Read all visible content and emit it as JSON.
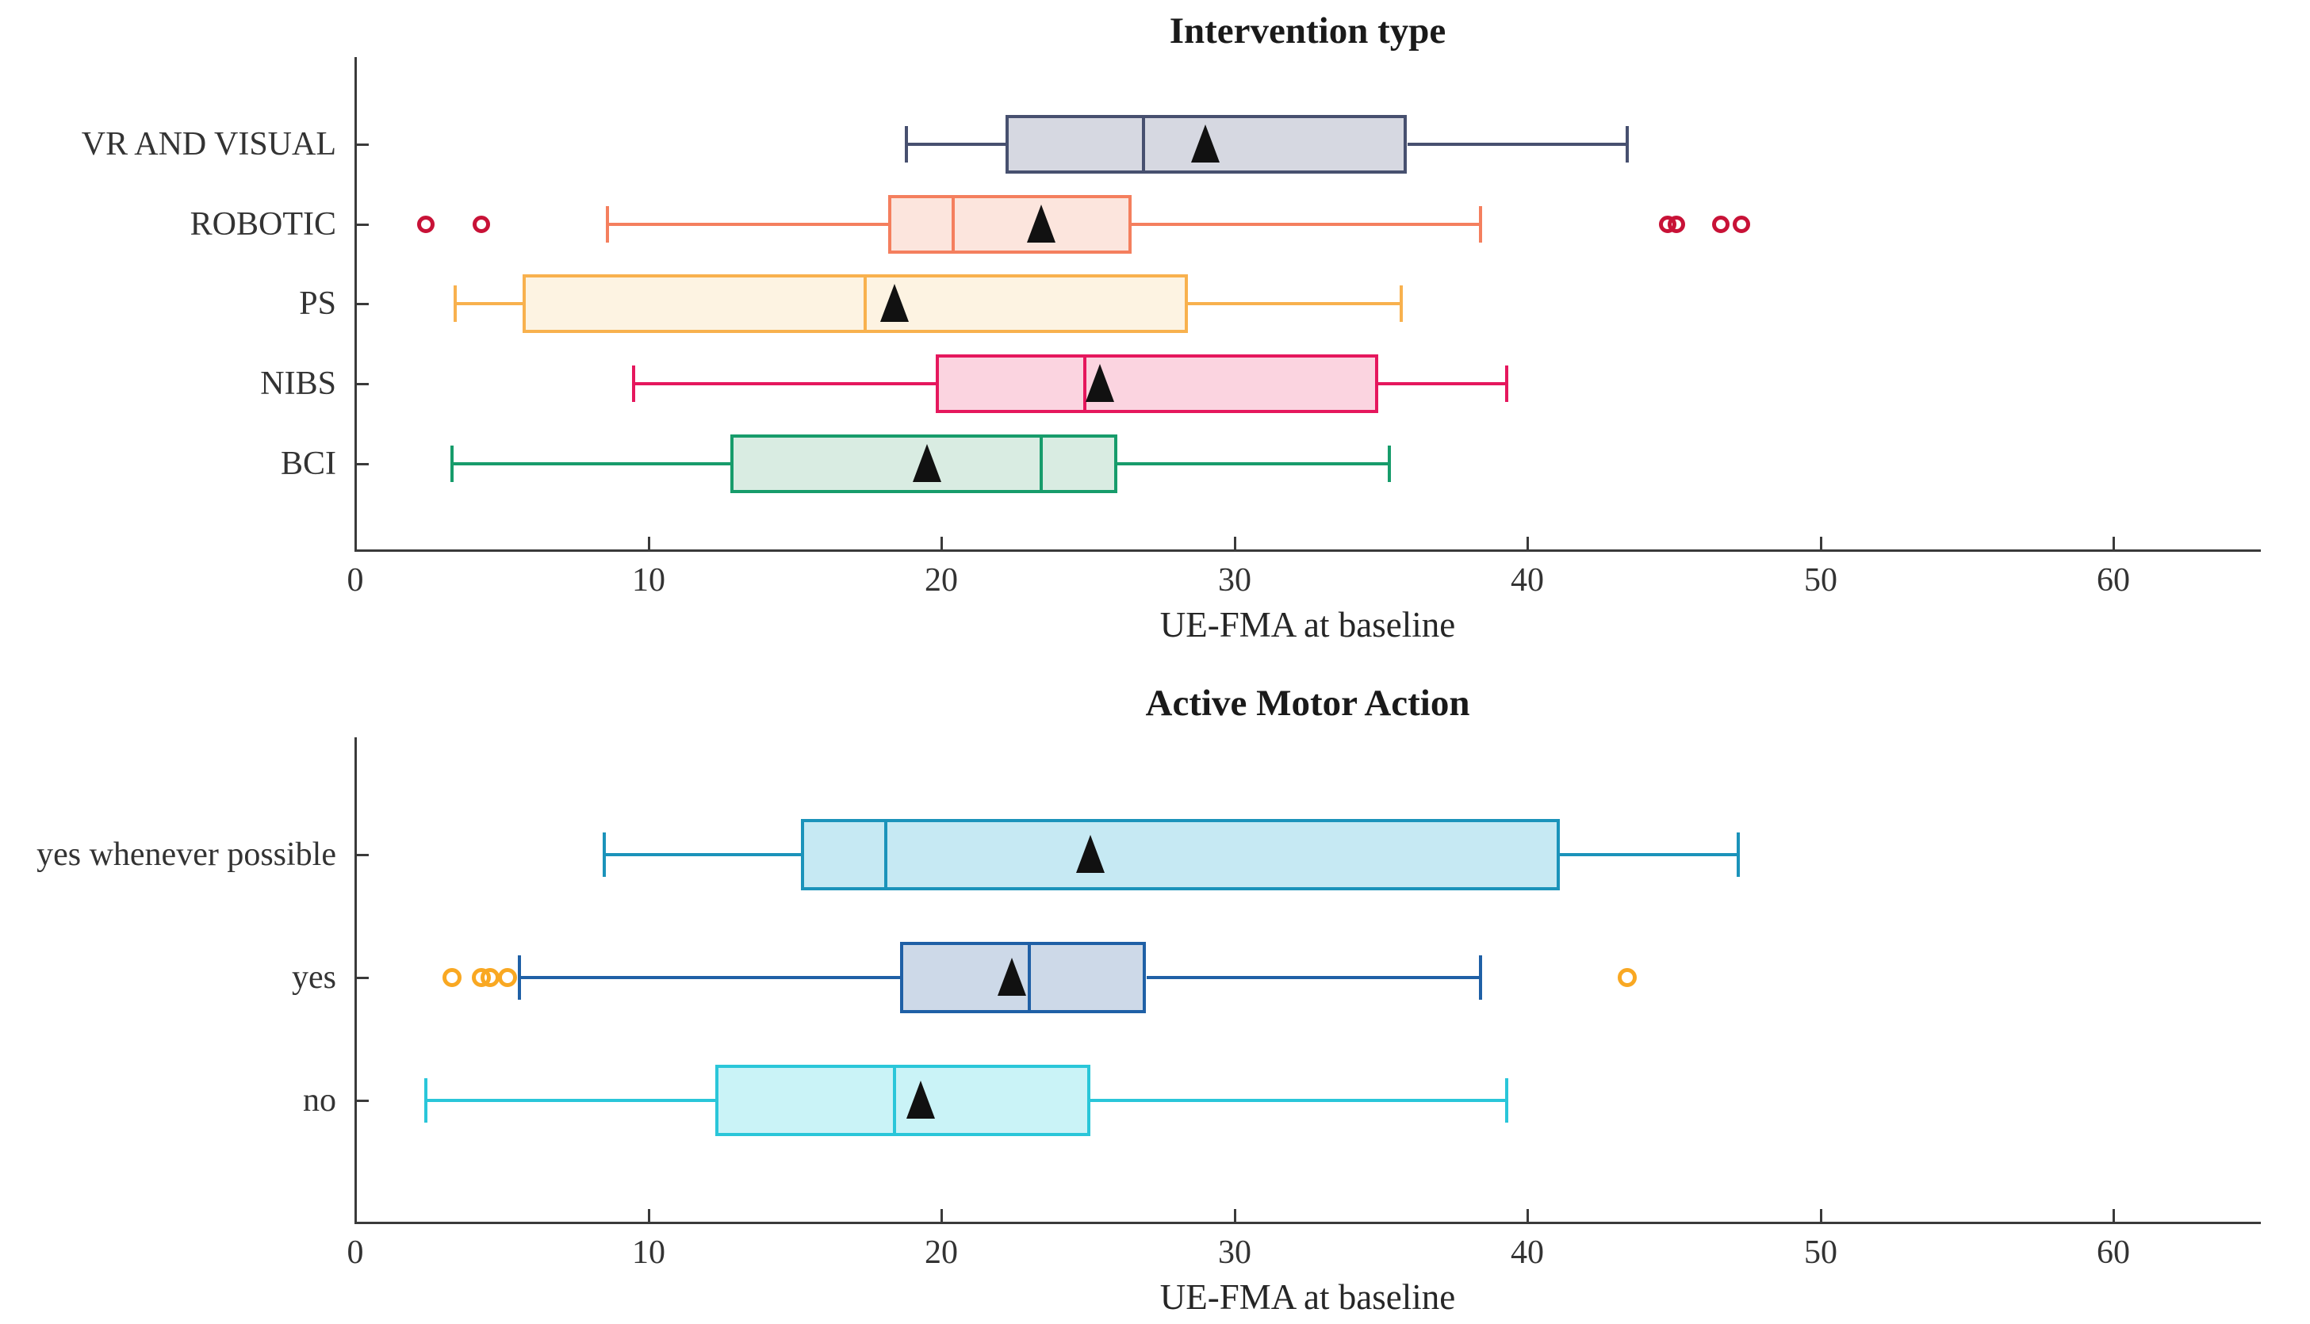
{
  "figure": {
    "background": "#ffffff",
    "axis_color": "#3a3a3a",
    "text_color": "#262626",
    "mean_marker_color": "#111111"
  },
  "chart_data": [
    {
      "type": "boxplot",
      "orientation": "horizontal",
      "title": "Intervention type",
      "xlabel": "UE-FMA at baseline",
      "xlim": [
        0,
        65
      ],
      "xticks": [
        0,
        10,
        20,
        30,
        40,
        50,
        60
      ],
      "grid": false,
      "legend": null,
      "categories": [
        "VR AND VISUAL",
        "ROBOTIC",
        "PS",
        "NIBS",
        "BCI"
      ],
      "series": [
        {
          "category": "VR AND VISUAL",
          "whisker_low": 18.8,
          "q1": 22.2,
          "median": 26.9,
          "mean": 29.0,
          "q3": 35.9,
          "whisker_high": 43.4,
          "outliers": [],
          "box_stroke": "#47506f",
          "box_fill": "#d6d8e1",
          "outlier_color": "#47506f"
        },
        {
          "category": "ROBOTIC",
          "whisker_low": 8.6,
          "q1": 18.2,
          "median": 20.4,
          "mean": 23.4,
          "q3": 26.5,
          "whisker_high": 38.4,
          "outliers": [
            2.4,
            4.3,
            44.8,
            45.1,
            46.6,
            47.3
          ],
          "box_stroke": "#f47f5e",
          "box_fill": "#fce5dd",
          "outlier_color": "#c81237"
        },
        {
          "category": "PS",
          "whisker_low": 3.4,
          "q1": 5.7,
          "median": 17.4,
          "mean": 18.4,
          "q3": 28.4,
          "whisker_high": 35.7,
          "outliers": [],
          "box_stroke": "#f8b14e",
          "box_fill": "#fdf3e2",
          "outlier_color": "#f8b14e"
        },
        {
          "category": "NIBS",
          "whisker_low": 9.5,
          "q1": 19.8,
          "median": 24.9,
          "mean": 25.4,
          "q3": 34.9,
          "whisker_high": 39.3,
          "outliers": [],
          "box_stroke": "#e5175d",
          "box_fill": "#fbd4e0",
          "outlier_color": "#e5175d"
        },
        {
          "category": "BCI",
          "whisker_low": 3.3,
          "q1": 12.8,
          "median": 23.4,
          "mean": 19.5,
          "q3": 26.0,
          "whisker_high": 35.3,
          "outliers": [],
          "box_stroke": "#179c6b",
          "box_fill": "#d9ece2",
          "outlier_color": "#179c6b"
        }
      ]
    },
    {
      "type": "boxplot",
      "orientation": "horizontal",
      "title": "Active Motor Action",
      "xlabel": "UE-FMA at baseline",
      "xlim": [
        0,
        65
      ],
      "xticks": [
        0,
        10,
        20,
        30,
        40,
        50,
        60
      ],
      "grid": false,
      "legend": null,
      "categories": [
        "yes whenever possible",
        "yes",
        "no"
      ],
      "series": [
        {
          "category": "yes whenever possible",
          "whisker_low": 8.5,
          "q1": 15.2,
          "median": 18.1,
          "mean": 25.1,
          "q3": 41.1,
          "whisker_high": 47.2,
          "outliers": [],
          "box_stroke": "#1b93ba",
          "box_fill": "#c6e9f3",
          "outlier_color": "#1b93ba"
        },
        {
          "category": "yes",
          "whisker_low": 5.6,
          "q1": 18.6,
          "median": 23.0,
          "mean": 22.4,
          "q3": 27.0,
          "whisker_high": 38.4,
          "outliers": [
            3.3,
            4.3,
            4.6,
            5.2,
            43.4
          ],
          "box_stroke": "#1f60a6",
          "box_fill": "#cdd9e8",
          "outlier_color": "#f9a822"
        },
        {
          "category": "no",
          "whisker_low": 2.4,
          "q1": 12.3,
          "median": 18.4,
          "mean": 19.3,
          "q3": 25.1,
          "whisker_high": 39.3,
          "outliers": [],
          "box_stroke": "#2ac6d9",
          "box_fill": "#caf3f7",
          "outlier_color": "#2ac6d9"
        }
      ]
    }
  ]
}
